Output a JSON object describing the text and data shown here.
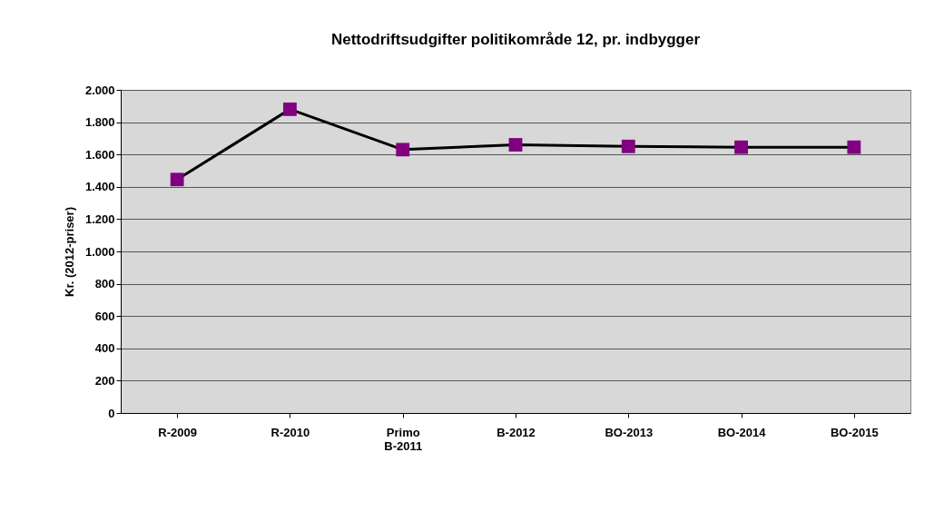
{
  "chart_data": {
    "type": "line",
    "title": "Nettodriftsudgifter politikområde 12, pr. indbygger",
    "ylabel": "Kr. (2012-priser)",
    "categories": [
      "R-2009",
      "R-2010",
      "Primo B-2011",
      "B-2012",
      "BO-2013",
      "BO-2014",
      "BO-2015"
    ],
    "series": [
      {
        "color": "#800080",
        "values": [
          1445,
          1880,
          1630,
          1660,
          1650,
          1645,
          1645
        ]
      }
    ],
    "ylim": [
      0,
      2000
    ],
    "yticks": [
      0,
      200,
      400,
      600,
      800,
      {
        "value": 1000,
        "label": "1.000"
      },
      {
        "value": 1200,
        "label": "1.200"
      },
      {
        "value": 1400,
        "label": "1.400"
      },
      {
        "value": 1600,
        "label": "1.600"
      },
      {
        "value": 1800,
        "label": "1.800"
      },
      {
        "value": 2000,
        "label": "2.000"
      }
    ],
    "grid": "y",
    "marker": "square",
    "line_style": "solid"
  }
}
